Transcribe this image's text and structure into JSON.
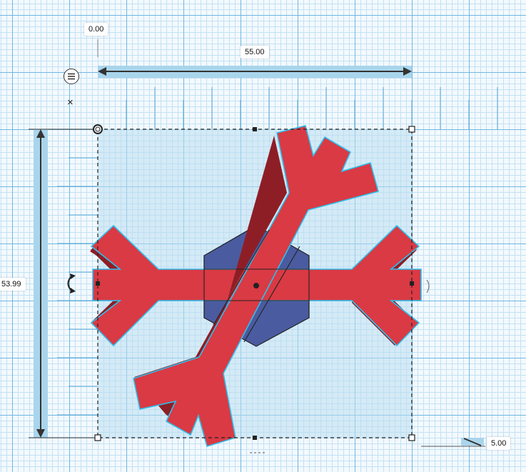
{
  "workplane": {
    "origin_label": "0.00",
    "width_label": "55.00",
    "depth_label": "53.99",
    "height_label": "5.00"
  },
  "toolbar": {
    "menu_icon": "menu-lines-icon",
    "close_icon": "close-icon",
    "rotate_icon": "rotate-arrow-icon"
  },
  "colors": {
    "shape_red": "#d93a44",
    "shape_red_shadow": "#8e1e26",
    "shape_hex": "#4a5ba0",
    "selection_outline": "#2ec0ee",
    "selection_fill": "#c9e7f5",
    "grid_major": "#6fb8e2",
    "grid_minor": "#c3e1f3"
  }
}
